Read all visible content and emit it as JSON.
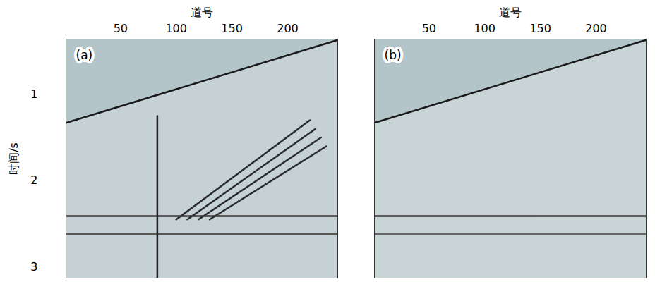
{
  "chart_data": [
    {
      "type": "seismic",
      "title": "(a)",
      "x_label": "道号",
      "y_label": "时间/s",
      "xlim": [
        1,
        245
      ],
      "ylim": [
        0.36,
        3.13
      ],
      "xticks": [
        50,
        100,
        150,
        200
      ],
      "yticks": [
        1,
        2,
        3
      ],
      "color": "#c5d1d4",
      "series": [
        {
          "type": "area",
          "color": "#b3c5c9",
          "x": [
            1,
            245
          ],
          "values": [
            1.33,
            0.37
          ]
        },
        {
          "type": "line",
          "color": "#1a1a1a",
          "x": [
            1,
            245
          ],
          "values": [
            1.33,
            0.37
          ]
        },
        {
          "type": "line",
          "color": "#2b2b2b",
          "x": [
            100,
            220
          ],
          "values": [
            2.45,
            1.3
          ]
        },
        {
          "type": "line",
          "color": "#2b2b2b",
          "x": [
            110,
            225
          ],
          "values": [
            2.45,
            1.4
          ]
        },
        {
          "type": "line",
          "color": "#2b2b2b",
          "x": [
            120,
            230
          ],
          "values": [
            2.45,
            1.5
          ]
        },
        {
          "type": "line",
          "color": "#2b2b2b",
          "x": [
            130,
            235
          ],
          "values": [
            2.45,
            1.6
          ]
        },
        {
          "type": "line",
          "color": "#333333",
          "x": [
            1,
            245
          ],
          "values": [
            2.41,
            2.41
          ]
        },
        {
          "type": "line",
          "color": "#555555",
          "x": [
            1,
            245
          ],
          "values": [
            2.62,
            2.62
          ]
        },
        {
          "type": "line",
          "color": "#222222",
          "x": [
            83,
            83
          ],
          "values": [
            1.25,
            3.13
          ]
        }
      ]
    },
    {
      "type": "seismic",
      "title": "(b)",
      "x_label": "道号",
      "xlim": [
        1,
        245
      ],
      "ylim": [
        0.36,
        3.13
      ],
      "xticks": [
        50,
        100,
        150,
        200
      ],
      "tick_labels": "x",
      "color": "#c9d4d6",
      "series": [
        {
          "type": "area",
          "color": "#b3c5c9",
          "x": [
            1,
            245
          ],
          "values": [
            1.33,
            0.37
          ]
        },
        {
          "type": "line",
          "color": "#1a1a1a",
          "x": [
            1,
            245
          ],
          "values": [
            1.33,
            0.37
          ]
        },
        {
          "type": "line",
          "color": "#333333",
          "x": [
            1,
            245
          ],
          "values": [
            2.41,
            2.41
          ]
        },
        {
          "type": "line",
          "color": "#666666",
          "x": [
            1,
            245
          ],
          "values": [
            2.62,
            2.62
          ]
        }
      ]
    }
  ]
}
